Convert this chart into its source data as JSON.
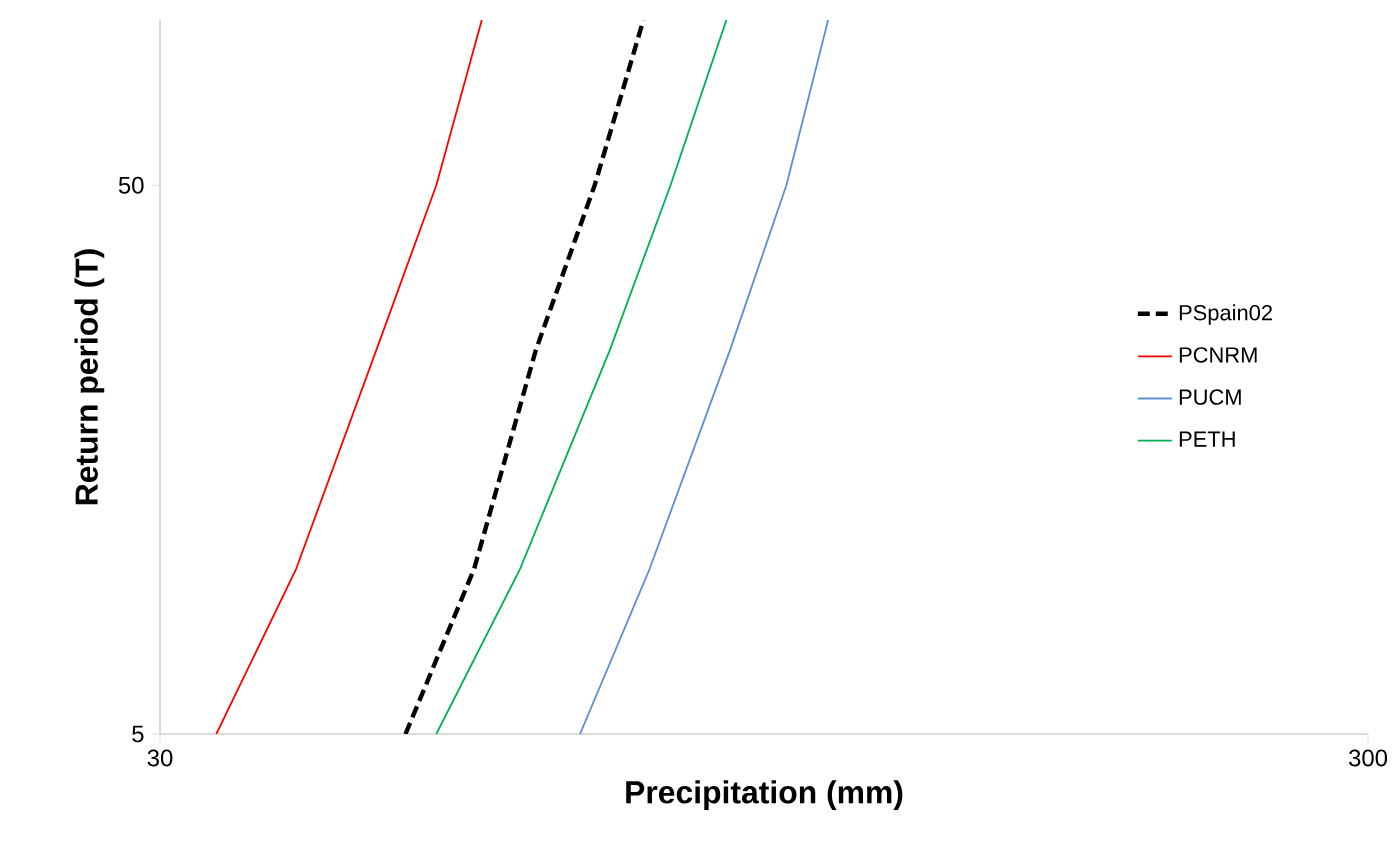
{
  "chart_data": {
    "type": "line",
    "xlabel": "Precipitation (mm)",
    "ylabel": "Return period (T)",
    "log": "xy",
    "xlim": [
      30,
      300
    ],
    "ylim": [
      5,
      100
    ],
    "xticks": [
      30,
      300
    ],
    "yticks": [
      5,
      50
    ],
    "grid": false,
    "legend": "right",
    "marker": "none",
    "series": [
      {
        "name": "PSpain02",
        "color": "#000000",
        "line_style": "dashed",
        "x": [
          47.9,
          54.6,
          61.4,
          68.7,
          75.4
        ],
        "values": [
          5,
          10,
          25,
          50,
          100
        ]
      },
      {
        "name": "PCNRM",
        "color": "#ff0000",
        "line_style": "solid",
        "x": [
          33.4,
          38.9,
          45.3,
          50.8,
          55.4
        ],
        "values": [
          5,
          10,
          25,
          50,
          100
        ]
      },
      {
        "name": "PUCM",
        "color": "#5b8fd0",
        "line_style": "solid",
        "x": [
          66.8,
          76.3,
          88.9,
          99,
          107.2
        ],
        "values": [
          5,
          10,
          25,
          50,
          100
        ]
      },
      {
        "name": "PETH",
        "color": "#00b050",
        "line_style": "solid",
        "x": [
          50.8,
          59.6,
          70.7,
          79.4,
          88.3
        ],
        "values": [
          5,
          10,
          25,
          50,
          100
        ]
      }
    ]
  }
}
